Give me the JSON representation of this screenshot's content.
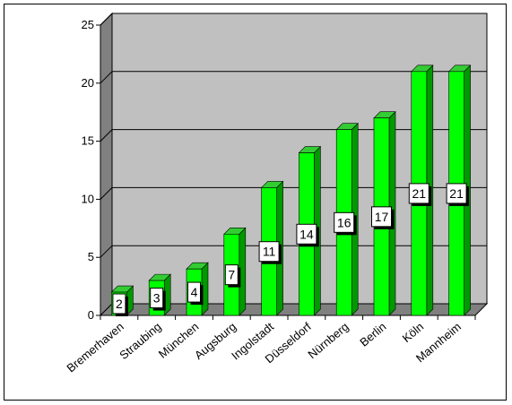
{
  "chart_data": {
    "type": "bar",
    "style": "3d",
    "title": "",
    "xlabel": "",
    "ylabel": "",
    "categories": [
      "Bremerhaven",
      "Straubing",
      "München",
      "Augsburg",
      "Ingolstadt",
      "Düsseldorf",
      "Nürnberg",
      "Berlin",
      "Köln",
      "Mannheim"
    ],
    "values": [
      2,
      3,
      4,
      7,
      11,
      14,
      16,
      17,
      21,
      21
    ],
    "ylim": [
      0,
      25
    ],
    "yticks": [
      0,
      5,
      10,
      15,
      20,
      25
    ],
    "grid": true,
    "legend": "none",
    "data_labels": true,
    "colors": {
      "bar_front": "#00ff00",
      "bar_side": "#009900",
      "bar_top": "#33cc33",
      "back_wall": "#c0c0c0",
      "side_wall": "#808080",
      "floor": "#808080",
      "grid": "#000000"
    }
  }
}
